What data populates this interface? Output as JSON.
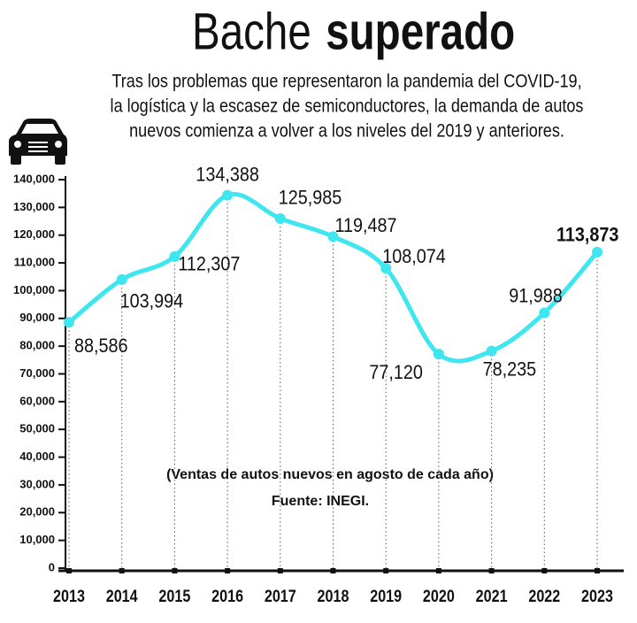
{
  "chart_data": {
    "type": "line",
    "title_parts": [
      "Bache",
      "superado"
    ],
    "subtitle_lines": [
      "Tras los problemas que representaron la pandemia del COVID-19,",
      "la logística y la escasez de semiconductores, la demanda de autos",
      "nuevos comienza a volver a los niveles del 2019 y anteriores."
    ],
    "annotations": [
      "(Ventas de autos nuevos en agosto de cada año)",
      "Fuente: INEGI."
    ],
    "categories": [
      "2013",
      "2014",
      "2015",
      "2016",
      "2017",
      "2018",
      "2019",
      "2020",
      "2021",
      "2022",
      "2023"
    ],
    "values": [
      88586,
      103994,
      112307,
      134388,
      125985,
      119487,
      108074,
      77120,
      78235,
      91988,
      113873
    ],
    "value_labels": [
      "88,586",
      "103,994",
      "112,307",
      "134,388",
      "125,985",
      "119,487",
      "108,074",
      "77,120",
      "78,235",
      "91,988",
      "113,873"
    ],
    "color": "#3ee6ef",
    "ylim": [
      0,
      140000
    ],
    "yticks": [
      0,
      {
        "value": 10000,
        "label": "10,000"
      },
      {
        "value": 20000,
        "label": "20,000"
      },
      {
        "value": 30000,
        "label": "30,000"
      },
      {
        "value": 40000,
        "label": "40,000"
      },
      {
        "value": 50000,
        "label": "50,000"
      },
      {
        "value": 60000,
        "label": "60,000"
      },
      {
        "value": 70000,
        "label": "70,000"
      },
      {
        "value": 80000,
        "label": "80,000"
      },
      {
        "value": 90000,
        "label": "90,000"
      },
      {
        "value": 100000,
        "label": "100,000"
      },
      {
        "value": 110000,
        "label": "110,000"
      },
      {
        "value": 120000,
        "label": "120,000"
      },
      {
        "value": 130000,
        "label": "130,000"
      },
      {
        "value": 140000,
        "label": "140,000"
      }
    ]
  }
}
